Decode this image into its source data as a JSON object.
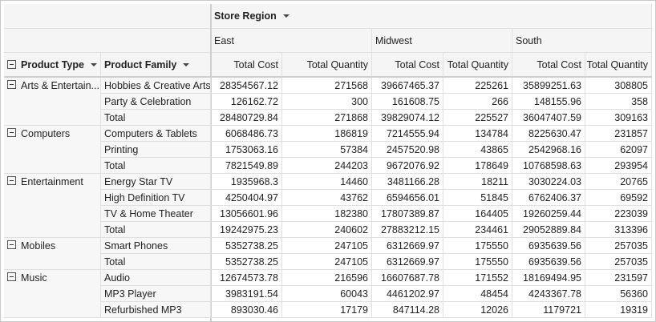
{
  "header": {
    "region_label": "Store Region",
    "row_headers": [
      "Product Type",
      "Product Family"
    ],
    "regions": [
      {
        "name": "East",
        "measures": [
          "Total Cost",
          "Total Quantity"
        ]
      },
      {
        "name": "Midwest",
        "measures": [
          "Total Cost",
          "Total Quantity"
        ]
      },
      {
        "name": "South",
        "measures": [
          "Total Cost",
          "Total Quantity"
        ]
      }
    ]
  },
  "groups": [
    {
      "type": "Arts & Entertain...",
      "rows": [
        {
          "family": "Hobbies & Creative Arts",
          "values": [
            "28354567.12",
            "271568",
            "39667465.37",
            "225261",
            "35899251.63",
            "308805"
          ]
        },
        {
          "family": "Party & Celebration",
          "values": [
            "126162.72",
            "300",
            "161608.75",
            "266",
            "148155.96",
            "358"
          ]
        },
        {
          "family": "Total",
          "values": [
            "28480729.84",
            "271868",
            "39829074.12",
            "225527",
            "36047407.59",
            "309163"
          ]
        }
      ]
    },
    {
      "type": "Computers",
      "rows": [
        {
          "family": "Computers & Tablets",
          "values": [
            "6068486.73",
            "186819",
            "7214555.94",
            "134784",
            "8225630.47",
            "231857"
          ]
        },
        {
          "family": "Printing",
          "values": [
            "1753063.16",
            "57384",
            "2457520.98",
            "43865",
            "2542968.16",
            "62097"
          ]
        },
        {
          "family": "Total",
          "values": [
            "7821549.89",
            "244203",
            "9672076.92",
            "178649",
            "10768598.63",
            "293954"
          ]
        }
      ]
    },
    {
      "type": "Entertainment",
      "rows": [
        {
          "family": "Energy Star TV",
          "values": [
            "1935968.3",
            "14460",
            "3481166.28",
            "18211",
            "3030224.03",
            "20765"
          ]
        },
        {
          "family": "High Definition TV",
          "values": [
            "4250404.97",
            "43762",
            "6594656.01",
            "51845",
            "6762406.37",
            "69592"
          ]
        },
        {
          "family": "TV & Home Theater",
          "values": [
            "13056601.96",
            "182380",
            "17807389.87",
            "164405",
            "19260259.44",
            "223039"
          ]
        },
        {
          "family": "Total",
          "values": [
            "19242975.23",
            "240602",
            "27883212.15",
            "234461",
            "29052889.84",
            "313396"
          ]
        }
      ]
    },
    {
      "type": "Mobiles",
      "rows": [
        {
          "family": "Smart Phones",
          "values": [
            "5352738.25",
            "247105",
            "6312669.97",
            "175550",
            "6935639.56",
            "257035"
          ]
        },
        {
          "family": "Total",
          "values": [
            "5352738.25",
            "247105",
            "6312669.97",
            "175550",
            "6935639.56",
            "257035"
          ]
        }
      ]
    },
    {
      "type": "Music",
      "rows": [
        {
          "family": "Audio",
          "values": [
            "12674573.78",
            "216596",
            "16607687.78",
            "171552",
            "18169494.95",
            "231597"
          ]
        },
        {
          "family": "MP3 Player",
          "values": [
            "3983191.54",
            "60043",
            "4461202.97",
            "48454",
            "4243367.78",
            "56360"
          ]
        },
        {
          "family": "Refurbished MP3",
          "values": [
            "893030.46",
            "17179",
            "847114.28",
            "12026",
            "1179721",
            "19319"
          ]
        }
      ]
    }
  ]
}
